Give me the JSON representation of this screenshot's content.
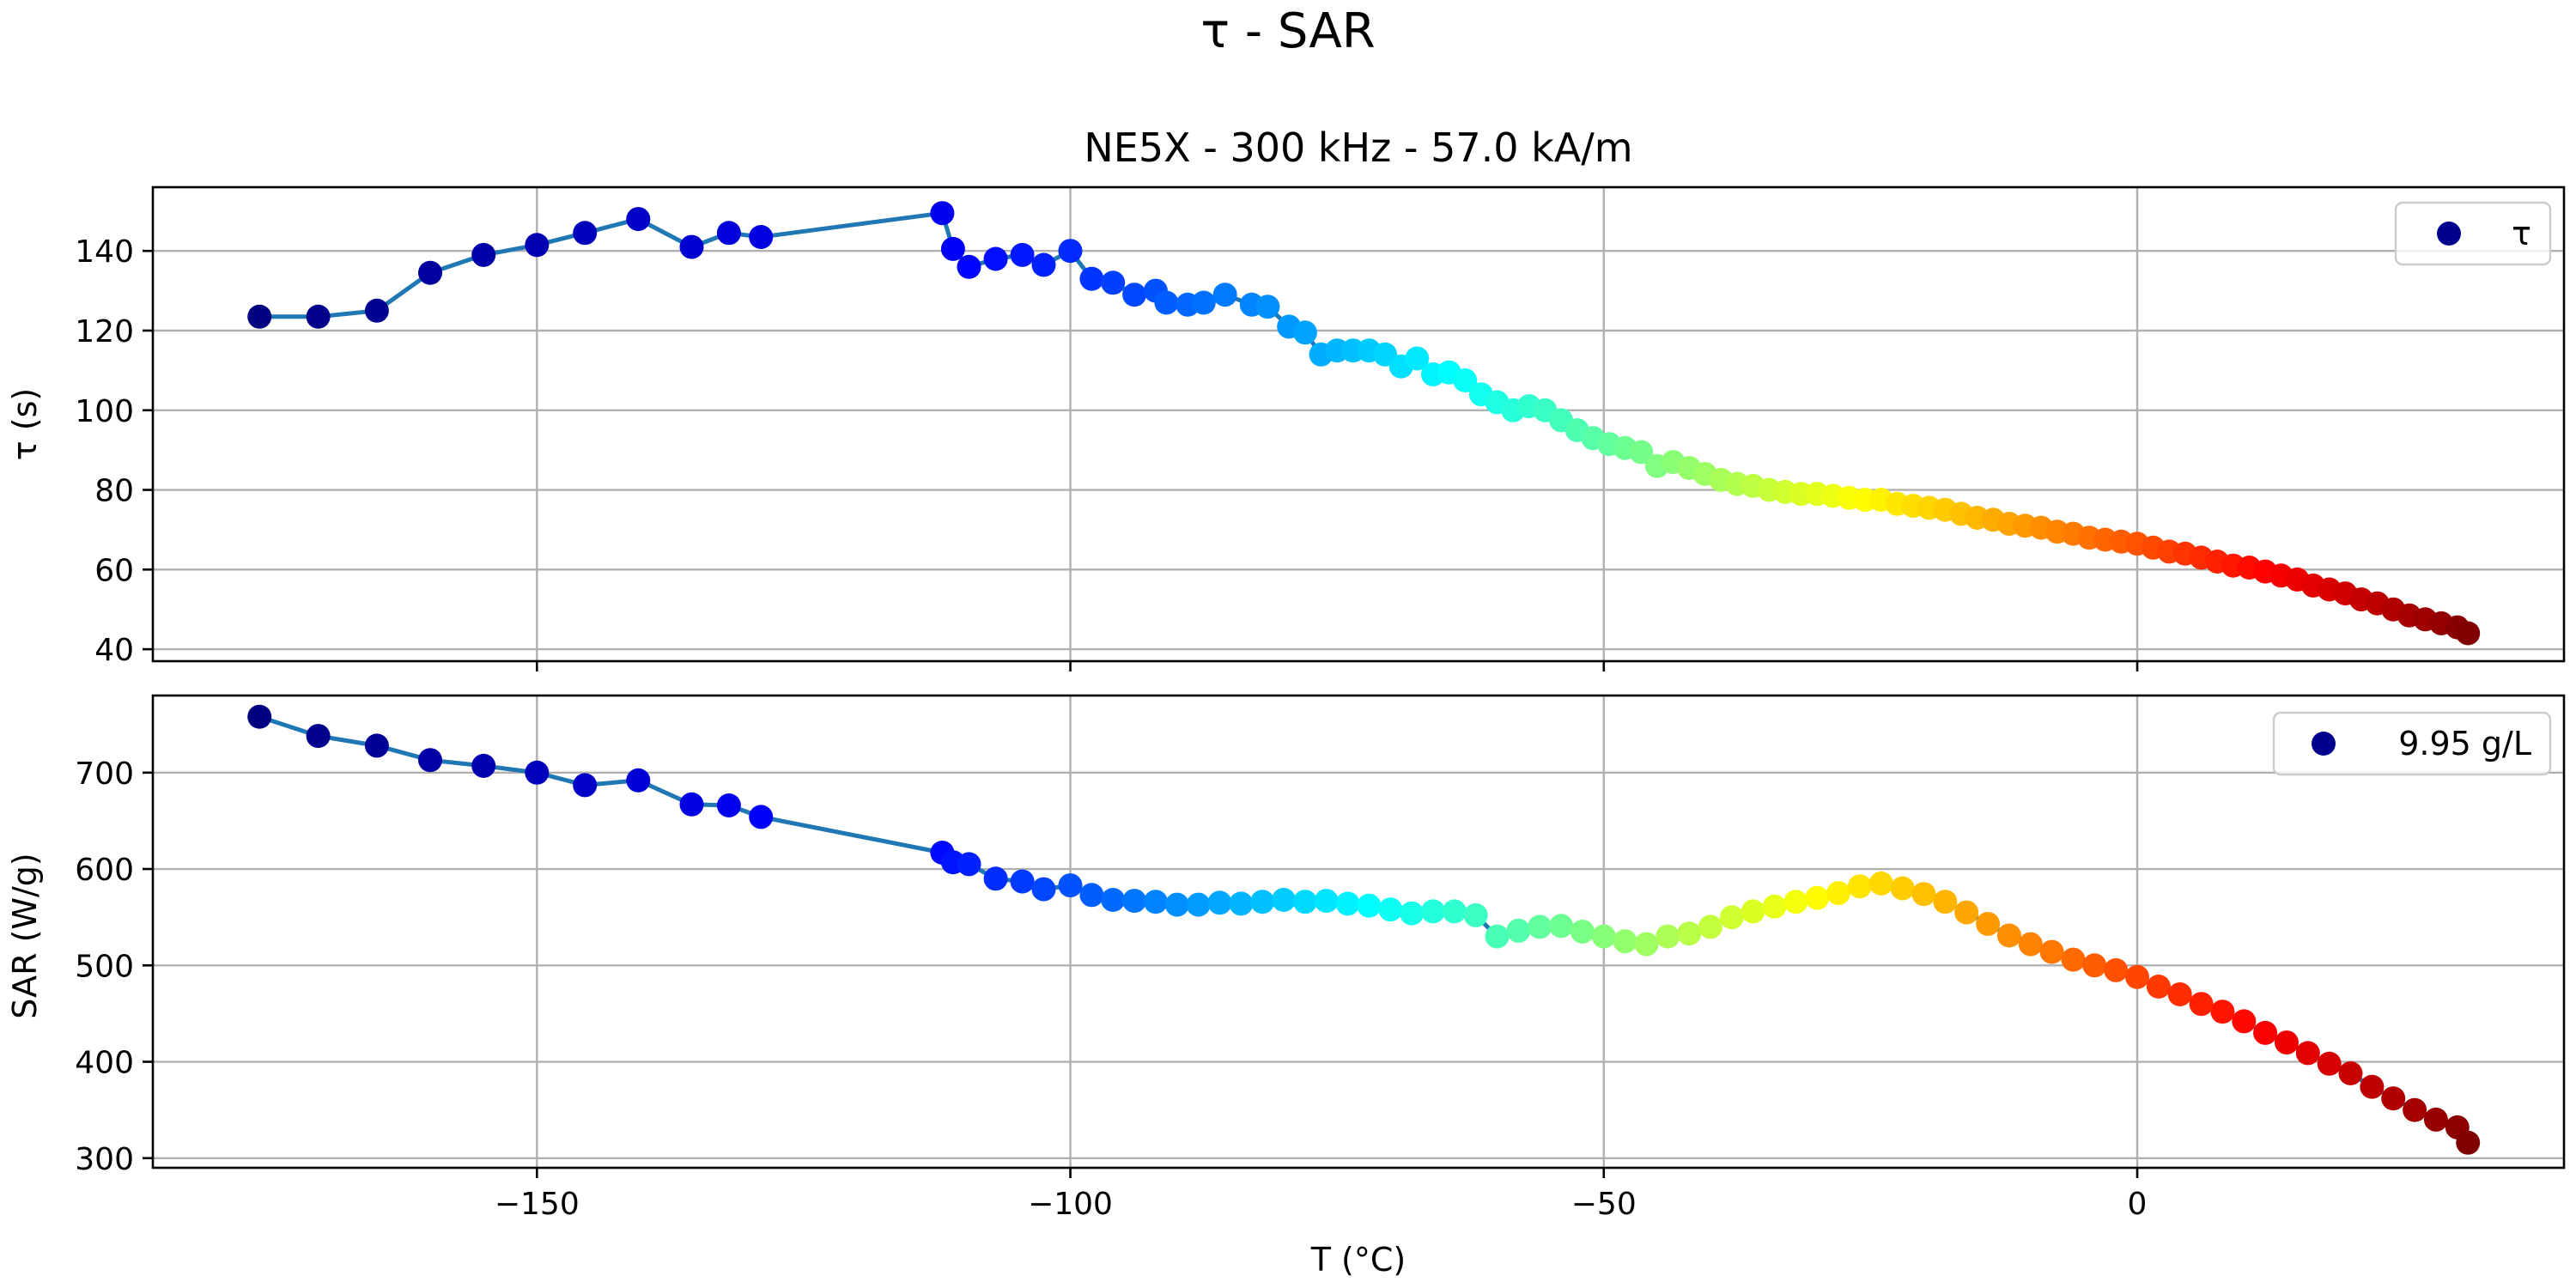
{
  "figure": {
    "suptitle": "τ - SAR"
  },
  "chart_data": [
    {
      "type": "scatter",
      "title": "NE5X - 300 kHz - 57.0 kA/m",
      "xlabel": "",
      "ylabel": "τ (s)",
      "xlim": [
        -186,
        40
      ],
      "ylim": [
        37,
        156
      ],
      "xticks": [
        -150,
        -100,
        -50,
        0
      ],
      "xticklabels": [
        "",
        "",
        "",
        ""
      ],
      "yticks": [
        40,
        60,
        80,
        100,
        120,
        140
      ],
      "yticklabels": [
        "40",
        "60",
        "80",
        "100",
        "120",
        "140"
      ],
      "grid": true,
      "legend_position": "top-right",
      "colormap": "jet",
      "line_color": "#1f77b4",
      "series": [
        {
          "name": "τ",
          "x": [
            -176,
            -170.5,
            -165,
            -160,
            -155,
            -150,
            -145.5,
            -140.5,
            -135.5,
            -132,
            -129,
            -112,
            -111,
            -109.5,
            -107,
            -104.5,
            -102.5,
            -100,
            -98,
            -96,
            -94,
            -92,
            -91,
            -89,
            -87.5,
            -85.5,
            -83,
            -81.5,
            -79.5,
            -78,
            -76.5,
            -75,
            -73.5,
            -72,
            -70.5,
            -69,
            -67.5,
            -66,
            -64.5,
            -63,
            -61.5,
            -60,
            -58.5,
            -57,
            -55.5,
            -54,
            -52.5,
            -51,
            -49.5,
            -48,
            -46.5,
            -45,
            -43.5,
            -42,
            -40.5,
            -39,
            -37.5,
            -36,
            -34.5,
            -33,
            -31.5,
            -30,
            -28.5,
            -27,
            -25.5,
            -24,
            -22.5,
            -21,
            -19.5,
            -18,
            -16.5,
            -15,
            -13.5,
            -12,
            -10.5,
            -9,
            -7.5,
            -6,
            -4.5,
            -3,
            -1.5,
            0,
            1.5,
            3,
            4.5,
            6,
            7.5,
            9,
            10.5,
            12,
            13.5,
            15,
            16.5,
            18,
            19.5,
            21,
            22.5,
            24,
            25.5,
            27,
            28.5,
            30,
            31
          ],
          "y": [
            123.5,
            123.5,
            125,
            134.5,
            139,
            141.5,
            144.5,
            148,
            141,
            144.5,
            143.5,
            149.5,
            140.5,
            136,
            138,
            139,
            136.5,
            140,
            133,
            132,
            129,
            130,
            127,
            126.5,
            127,
            129,
            126.5,
            126,
            121,
            119.5,
            114,
            115,
            115,
            115,
            114,
            111,
            113,
            109,
            109.5,
            107.5,
            104,
            102,
            100,
            101,
            100,
            97.5,
            95,
            93,
            91.5,
            90.5,
            89.5,
            86,
            87,
            85.5,
            84,
            82.5,
            81.5,
            81,
            80,
            79.5,
            79,
            79,
            78.5,
            78,
            77.5,
            77.5,
            76.5,
            76,
            75.5,
            75,
            74,
            73,
            72.5,
            71.5,
            71,
            70.5,
            69.5,
            69,
            68,
            67.5,
            67,
            66.5,
            65.5,
            64.5,
            64,
            63,
            62,
            61,
            60.5,
            59.5,
            58.5,
            57.5,
            56,
            55,
            54,
            52.5,
            51.5,
            50,
            48.5,
            47.5,
            46.5,
            45.5,
            44
          ]
        }
      ]
    },
    {
      "type": "scatter",
      "title": "",
      "xlabel": "T (°C)",
      "ylabel": "SAR (W/g)",
      "xlim": [
        -186,
        40
      ],
      "ylim": [
        290,
        780
      ],
      "xticks": [
        -150,
        -100,
        -50,
        0
      ],
      "xticklabels": [
        "−150",
        "−100",
        "−50",
        "0"
      ],
      "yticks": [
        300,
        400,
        500,
        600,
        700
      ],
      "yticklabels": [
        "300",
        "400",
        "500",
        "600",
        "700"
      ],
      "grid": true,
      "legend_position": "top-right",
      "colormap": "jet",
      "line_color": "#1f77b4",
      "series": [
        {
          "name": "9.95 g/L",
          "x": [
            -176,
            -170.5,
            -165,
            -160,
            -155,
            -150,
            -145.5,
            -140.5,
            -135.5,
            -132,
            -129,
            -112,
            -111,
            -109.5,
            -107,
            -104.5,
            -102.5,
            -100,
            -98,
            -96,
            -94,
            -92,
            -90,
            -88,
            -86,
            -84,
            -82,
            -80,
            -78,
            -76,
            -74,
            -72,
            -70,
            -68,
            -66,
            -64,
            -62,
            -60,
            -58,
            -56,
            -54,
            -52,
            -50,
            -48,
            -46,
            -44,
            -42,
            -40,
            -38,
            -36,
            -34,
            -32,
            -30,
            -28,
            -26,
            -24,
            -22,
            -20,
            -18,
            -16,
            -14,
            -12,
            -10,
            -8,
            -6,
            -4,
            -2,
            0,
            2,
            4,
            6,
            8,
            10,
            12,
            14,
            16,
            18,
            20,
            22,
            24,
            26,
            28,
            30,
            31
          ],
          "y": [
            758,
            738,
            728,
            713,
            707,
            700,
            687,
            692,
            667,
            666,
            654,
            617,
            607,
            605,
            590,
            587,
            579,
            583,
            573,
            568,
            567,
            566,
            563,
            563,
            565,
            564,
            566,
            568,
            566,
            567,
            564,
            562,
            558,
            554,
            556,
            556,
            552,
            530,
            536,
            540,
            541,
            535,
            530,
            525,
            522,
            530,
            533,
            540,
            550,
            556,
            561,
            566,
            570,
            575,
            582,
            585,
            580,
            574,
            566,
            555,
            543,
            531,
            522,
            514,
            506,
            500,
            495,
            488,
            478,
            470,
            460,
            452,
            442,
            430,
            420,
            409,
            398,
            388,
            374,
            362,
            350,
            340,
            332,
            316
          ]
        }
      ]
    }
  ]
}
